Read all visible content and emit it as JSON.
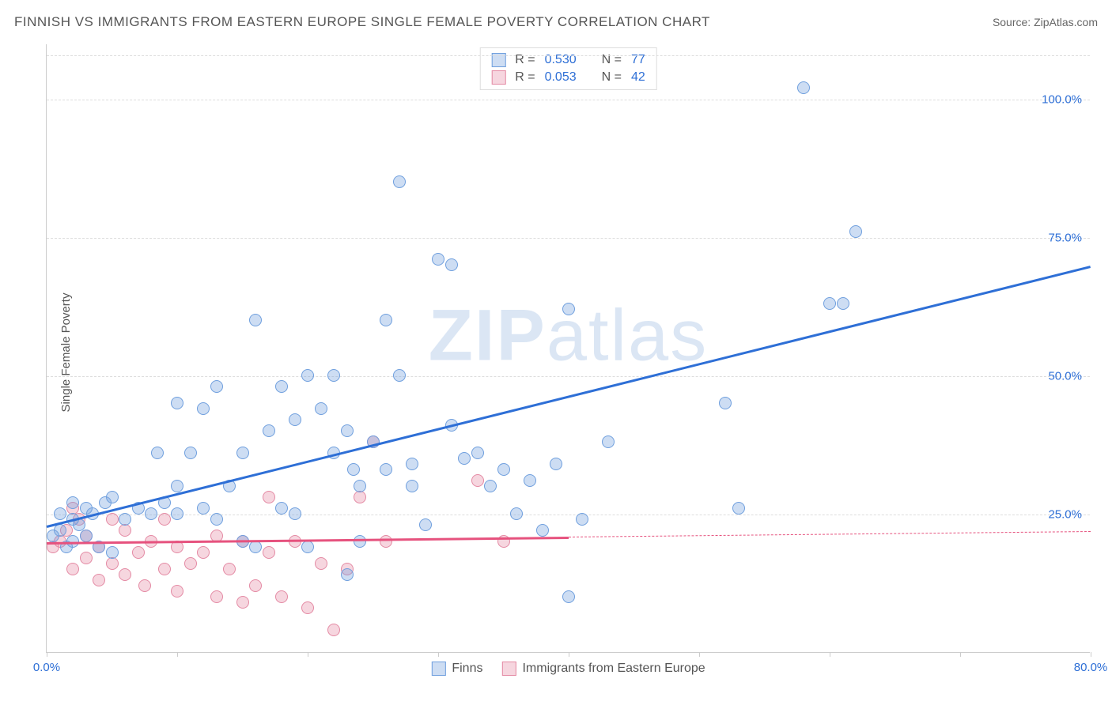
{
  "header": {
    "title": "FINNISH VS IMMIGRANTS FROM EASTERN EUROPE SINGLE FEMALE POVERTY CORRELATION CHART",
    "source_label": "Source:",
    "source_value": "ZipAtlas.com"
  },
  "ylabel": "Single Female Poverty",
  "watermark": {
    "bold": "ZIP",
    "light": "atlas",
    "color": "#7fa8d9"
  },
  "chart": {
    "type": "scatter",
    "xlim": [
      0,
      80
    ],
    "ylim": [
      0,
      110
    ],
    "background_color": "#ffffff",
    "grid_color": "#dddddd",
    "axis_color": "#cccccc",
    "yticks": [
      {
        "v": 25,
        "label": "25.0%"
      },
      {
        "v": 50,
        "label": "50.0%"
      },
      {
        "v": 75,
        "label": "75.0%"
      },
      {
        "v": 100,
        "label": "100.0%"
      }
    ],
    "xtick_values": [
      0,
      10,
      20,
      30,
      40,
      50,
      60,
      70,
      80
    ],
    "xtick_labels": [
      {
        "v": 0,
        "label": "0.0%"
      },
      {
        "v": 80,
        "label": "80.0%"
      }
    ],
    "xlabel_color": "#2e6fd6",
    "ylabel_tick_color": "#2e6fd6",
    "marker_radius": 8,
    "marker_opacity": 0.45,
    "series": {
      "finns": {
        "label": "Finns",
        "color": "#6f9fde",
        "fill": "rgba(111,159,222,0.35)",
        "trend_color": "#2e6fd6",
        "r": "0.530",
        "n": "77",
        "trend": {
          "x1": 0,
          "y1": 23,
          "x2": 80,
          "y2": 70,
          "solid_until": 80
        },
        "points": [
          [
            0.5,
            21
          ],
          [
            1,
            22
          ],
          [
            1,
            25
          ],
          [
            1.5,
            19
          ],
          [
            2,
            20
          ],
          [
            2,
            24
          ],
          [
            2,
            27
          ],
          [
            2.5,
            23
          ],
          [
            3,
            21
          ],
          [
            3,
            26
          ],
          [
            3.5,
            25
          ],
          [
            4,
            19
          ],
          [
            4.5,
            27
          ],
          [
            5,
            18
          ],
          [
            5,
            28
          ],
          [
            6,
            24
          ],
          [
            7,
            26
          ],
          [
            8,
            25
          ],
          [
            8.5,
            36
          ],
          [
            9,
            27
          ],
          [
            10,
            25
          ],
          [
            10,
            30
          ],
          [
            10,
            45
          ],
          [
            11,
            36
          ],
          [
            12,
            26
          ],
          [
            12,
            44
          ],
          [
            13,
            24
          ],
          [
            13,
            48
          ],
          [
            14,
            30
          ],
          [
            15,
            20
          ],
          [
            15,
            36
          ],
          [
            16,
            19
          ],
          [
            16,
            60
          ],
          [
            17,
            40
          ],
          [
            18,
            26
          ],
          [
            18,
            48
          ],
          [
            19,
            25
          ],
          [
            19,
            42
          ],
          [
            20,
            19
          ],
          [
            20,
            50
          ],
          [
            21,
            44
          ],
          [
            22,
            36
          ],
          [
            22,
            50
          ],
          [
            23,
            14
          ],
          [
            23,
            40
          ],
          [
            23.5,
            33
          ],
          [
            24,
            20
          ],
          [
            24,
            30
          ],
          [
            25,
            38
          ],
          [
            26,
            33
          ],
          [
            26,
            60
          ],
          [
            27,
            50
          ],
          [
            27,
            85
          ],
          [
            28,
            30
          ],
          [
            28,
            34
          ],
          [
            29,
            23
          ],
          [
            30,
            71
          ],
          [
            31,
            70
          ],
          [
            31,
            41
          ],
          [
            32,
            35
          ],
          [
            33,
            36
          ],
          [
            34,
            30
          ],
          [
            35,
            33
          ],
          [
            36,
            25
          ],
          [
            37,
            31
          ],
          [
            38,
            22
          ],
          [
            39,
            34
          ],
          [
            40,
            10
          ],
          [
            40,
            62
          ],
          [
            41,
            24
          ],
          [
            43,
            38
          ],
          [
            52,
            45
          ],
          [
            53,
            26
          ],
          [
            58,
            102
          ],
          [
            60,
            63
          ],
          [
            61,
            63
          ],
          [
            62,
            76
          ]
        ]
      },
      "immigrants": {
        "label": "Immigrants from Eastern Europe",
        "color": "#e48aa4",
        "fill": "rgba(228,138,164,0.35)",
        "trend_color": "#e6527e",
        "r": "0.053",
        "n": "42",
        "trend": {
          "x1": 0,
          "y1": 20,
          "x2": 80,
          "y2": 22,
          "solid_until": 40
        },
        "points": [
          [
            0.5,
            19
          ],
          [
            1,
            20
          ],
          [
            1.5,
            22
          ],
          [
            2,
            15
          ],
          [
            2,
            26
          ],
          [
            2.5,
            24
          ],
          [
            3,
            17
          ],
          [
            3,
            21
          ],
          [
            4,
            13
          ],
          [
            4,
            19
          ],
          [
            5,
            16
          ],
          [
            5,
            24
          ],
          [
            6,
            14
          ],
          [
            6,
            22
          ],
          [
            7,
            18
          ],
          [
            7.5,
            12
          ],
          [
            8,
            20
          ],
          [
            9,
            15
          ],
          [
            9,
            24
          ],
          [
            10,
            11
          ],
          [
            10,
            19
          ],
          [
            11,
            16
          ],
          [
            12,
            18
          ],
          [
            13,
            10
          ],
          [
            13,
            21
          ],
          [
            14,
            15
          ],
          [
            15,
            9
          ],
          [
            15,
            20
          ],
          [
            16,
            12
          ],
          [
            17,
            18
          ],
          [
            17,
            28
          ],
          [
            18,
            10
          ],
          [
            19,
            20
          ],
          [
            20,
            8
          ],
          [
            21,
            16
          ],
          [
            22,
            4
          ],
          [
            23,
            15
          ],
          [
            24,
            28
          ],
          [
            25,
            38
          ],
          [
            26,
            20
          ],
          [
            33,
            31
          ],
          [
            35,
            20
          ]
        ]
      }
    }
  },
  "legend_top": {
    "r_label": "R =",
    "n_label": "N =",
    "value_color": "#2e6fd6",
    "text_color": "#555555"
  },
  "legend_bottom": {
    "text_color": "#555555"
  }
}
